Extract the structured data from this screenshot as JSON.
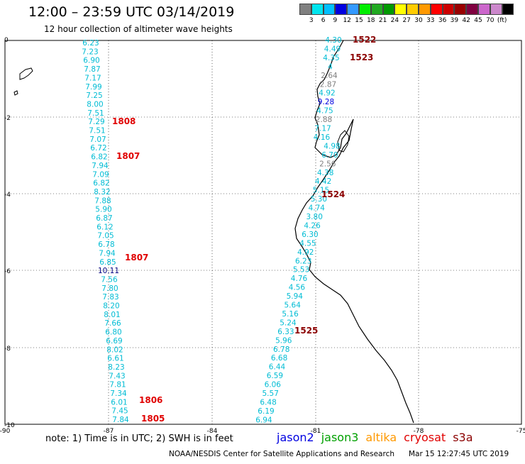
{
  "header": {
    "title": "12:00 – 23:59 UTC 03/14/2019",
    "subtitle": "12 hour collection of altimeter wave heights"
  },
  "legend": {
    "colors": [
      "#808080",
      "#00e5ee",
      "#00bfff",
      "#0000e0",
      "#3399ff",
      "#00ee00",
      "#22aa22",
      "#009900",
      "#ffff00",
      "#ffcc00",
      "#ff9900",
      "#ff0000",
      "#cc0000",
      "#990000",
      "#800040",
      "#cc66cc",
      "#cc88cc",
      "#000000"
    ],
    "labels": [
      "3",
      "6",
      "9",
      "12",
      "15",
      "18",
      "21",
      "24",
      "27",
      "30",
      "33",
      "36",
      "39",
      "42",
      "45",
      "70",
      "(ft)"
    ]
  },
  "axes": {
    "x_ticks": [
      "-90",
      "-87",
      "-84",
      "-81",
      "-78",
      "-75"
    ],
    "y_ticks": [
      "0",
      "-2",
      "-4",
      "-6",
      "-8",
      "-10"
    ]
  },
  "tracks": {
    "west": [
      {
        "v": "6.23",
        "c": "#00bcd4"
      },
      {
        "v": "7.23",
        "c": "#00bcd4"
      },
      {
        "v": "6.90",
        "c": "#00bcd4"
      },
      {
        "v": "7.87",
        "c": "#00bcd4"
      },
      {
        "v": "7.17",
        "c": "#00bcd4"
      },
      {
        "v": "7.99",
        "c": "#00bcd4"
      },
      {
        "v": "7.25",
        "c": "#00bcd4"
      },
      {
        "v": "8.00",
        "c": "#00bcd4"
      },
      {
        "v": "7.51",
        "c": "#00bcd4"
      },
      {
        "v": "7.29",
        "c": "#00bcd4"
      },
      {
        "v": "7.51",
        "c": "#00bcd4"
      },
      {
        "v": "7.07",
        "c": "#00bcd4"
      },
      {
        "v": "6.72",
        "c": "#00bcd4"
      },
      {
        "v": "6.82",
        "c": "#00bcd4"
      },
      {
        "v": "7.94",
        "c": "#00bcd4"
      },
      {
        "v": "7.09",
        "c": "#00bcd4"
      },
      {
        "v": "6.82",
        "c": "#00bcd4"
      },
      {
        "v": "8.32",
        "c": "#00bcd4"
      },
      {
        "v": "7.88",
        "c": "#00bcd4"
      },
      {
        "v": "5.90",
        "c": "#00bcd4"
      },
      {
        "v": "6.87",
        "c": "#00bcd4"
      },
      {
        "v": "6.12",
        "c": "#00bcd4"
      },
      {
        "v": "7.05",
        "c": "#00bcd4"
      },
      {
        "v": "6.78",
        "c": "#00bcd4"
      },
      {
        "v": "7.94",
        "c": "#00bcd4"
      },
      {
        "v": "6.85",
        "c": "#00bcd4"
      },
      {
        "v": "10.11",
        "c": "#000080"
      },
      {
        "v": "7.56",
        "c": "#00bcd4"
      },
      {
        "v": "7.80",
        "c": "#00bcd4"
      },
      {
        "v": "7.83",
        "c": "#00bcd4"
      },
      {
        "v": "8.20",
        "c": "#00bcd4"
      },
      {
        "v": "8.01",
        "c": "#00bcd4"
      },
      {
        "v": "7.66",
        "c": "#00bcd4"
      },
      {
        "v": "6.80",
        "c": "#00bcd4"
      },
      {
        "v": "6.69",
        "c": "#00bcd4"
      },
      {
        "v": "8.02",
        "c": "#00bcd4"
      },
      {
        "v": "6.61",
        "c": "#00bcd4"
      },
      {
        "v": "8.23",
        "c": "#00bcd4"
      },
      {
        "v": "7.43",
        "c": "#00bcd4"
      },
      {
        "v": "7.81",
        "c": "#00bcd4"
      },
      {
        "v": "7.34",
        "c": "#00bcd4"
      },
      {
        "v": "6.01",
        "c": "#00bcd4"
      },
      {
        "v": "7.45",
        "c": "#00bcd4"
      },
      {
        "v": "7.84",
        "c": "#00bcd4"
      }
    ],
    "east": [
      {
        "v": "4.30",
        "c": "#00bcd4"
      },
      {
        "v": "4.49",
        "c": "#00bcd4"
      },
      {
        "v": "4.35",
        "c": "#00bcd4"
      },
      {
        "v": "4",
        "c": "#00bcd4"
      },
      {
        "v": "2.64",
        "c": "#808080"
      },
      {
        "v": "2.87",
        "c": "#808080"
      },
      {
        "v": "4.92",
        "c": "#00bcd4"
      },
      {
        "v": "9.28",
        "c": "#0000e0"
      },
      {
        "v": "4.75",
        "c": "#00bcd4"
      },
      {
        "v": "2.88",
        "c": "#808080"
      },
      {
        "v": "7.17",
        "c": "#00bcd4"
      },
      {
        "v": "4.16",
        "c": "#00bcd4"
      },
      {
        "v": "4.98",
        "c": "#00bcd4"
      },
      {
        "v": "6.70",
        "c": "#00bcd4"
      },
      {
        "v": "2.56",
        "c": "#808080"
      },
      {
        "v": "4.38",
        "c": "#00bcd4"
      },
      {
        "v": "4.42",
        "c": "#00bcd4"
      },
      {
        "v": "5.15",
        "c": "#00bcd4"
      },
      {
        "v": "5.30",
        "c": "#00bcd4"
      },
      {
        "v": "4.74",
        "c": "#00bcd4"
      },
      {
        "v": "3.80",
        "c": "#00bcd4"
      },
      {
        "v": "4.26",
        "c": "#00bcd4"
      },
      {
        "v": "6.30",
        "c": "#00bcd4"
      },
      {
        "v": "4.55",
        "c": "#00bcd4"
      },
      {
        "v": "4.92",
        "c": "#00bcd4"
      },
      {
        "v": "6.23",
        "c": "#00bcd4"
      },
      {
        "v": "5.53",
        "c": "#00bcd4"
      },
      {
        "v": "4.76",
        "c": "#00bcd4"
      },
      {
        "v": "4.56",
        "c": "#00bcd4"
      },
      {
        "v": "5.94",
        "c": "#00bcd4"
      },
      {
        "v": "5.64",
        "c": "#00bcd4"
      },
      {
        "v": "5.16",
        "c": "#00bcd4"
      },
      {
        "v": "5.24",
        "c": "#00bcd4"
      },
      {
        "v": "6.33",
        "c": "#00bcd4"
      },
      {
        "v": "5.96",
        "c": "#00bcd4"
      },
      {
        "v": "6.78",
        "c": "#00bcd4"
      },
      {
        "v": "6.68",
        "c": "#00bcd4"
      },
      {
        "v": "6.44",
        "c": "#00bcd4"
      },
      {
        "v": "6.59",
        "c": "#00bcd4"
      },
      {
        "v": "6.06",
        "c": "#00bcd4"
      },
      {
        "v": "5.57",
        "c": "#00bcd4"
      },
      {
        "v": "6.48",
        "c": "#00bcd4"
      },
      {
        "v": "6.19",
        "c": "#00bcd4"
      },
      {
        "v": "6.94",
        "c": "#00bcd4"
      }
    ]
  },
  "time_labels": [
    {
      "t": "1522",
      "c": "#8b0000"
    },
    {
      "t": "1523",
      "c": "#8b0000"
    },
    {
      "t": "1808",
      "c": "#e00000"
    },
    {
      "t": "1807",
      "c": "#e00000"
    },
    {
      "t": "1524",
      "c": "#8b0000"
    },
    {
      "t": "1807",
      "c": "#e00000"
    },
    {
      "t": "1525",
      "c": "#8b0000"
    },
    {
      "t": "1806",
      "c": "#e00000"
    },
    {
      "t": "1805",
      "c": "#e00000"
    }
  ],
  "footer": {
    "note": "note: 1) Time is in UTC; 2) SWH is in feet",
    "satellites": [
      {
        "name": "jason2",
        "color": "#0000e0"
      },
      {
        "name": "jason3",
        "color": "#00a000"
      },
      {
        "name": "altika",
        "color": "#ff9900"
      },
      {
        "name": "cryosat",
        "color": "#e00000"
      },
      {
        "name": "s3a",
        "color": "#8b0000"
      }
    ],
    "credit": "NOAA/NESDIS Center for Satellite Applications and Research",
    "timestamp": "Mar 15 12:27:45 UTC 2019"
  }
}
